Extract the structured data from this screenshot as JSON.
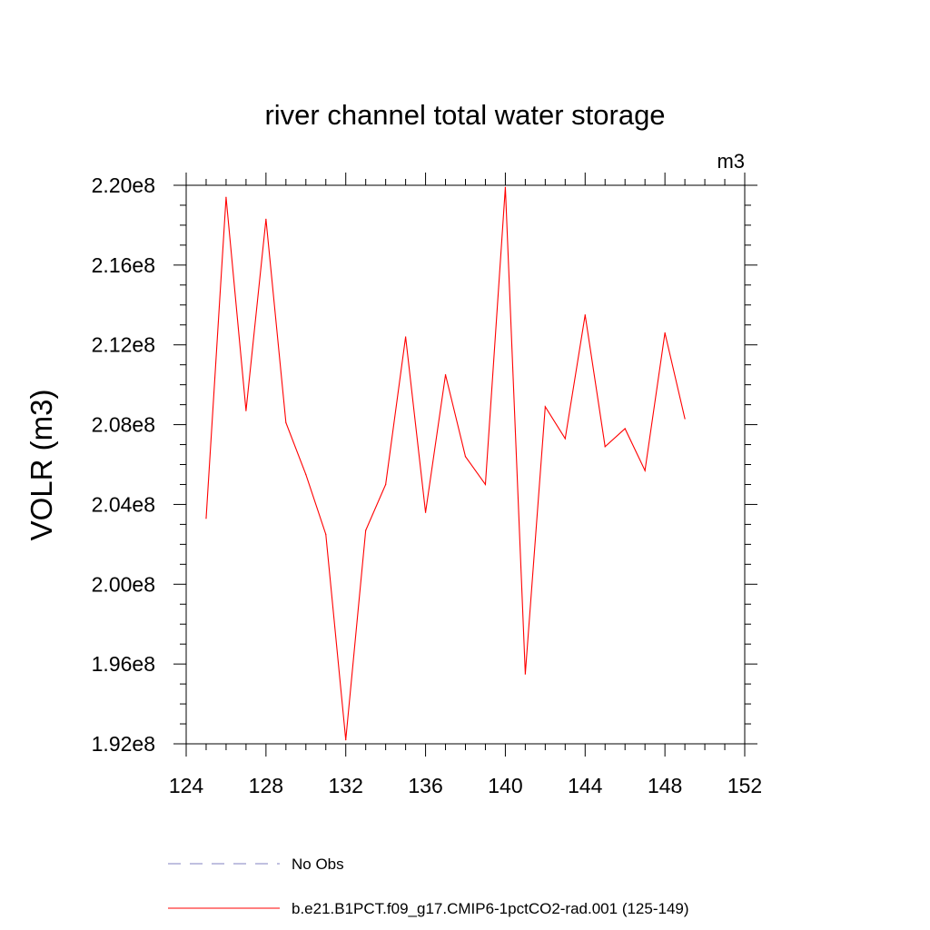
{
  "chart_data": {
    "type": "line",
    "title": "river channel total water storage",
    "units_label": "m3",
    "ylabel": "VOLR  (m3)",
    "xlabel": "",
    "xlim": [
      124,
      152
    ],
    "ylim": [
      192000000.0,
      220000000.0
    ],
    "xticks": [
      124,
      128,
      132,
      136,
      140,
      144,
      148,
      152
    ],
    "xtick_labels": [
      "124",
      "128",
      "132",
      "136",
      "140",
      "144",
      "148",
      "152"
    ],
    "yticks": [
      192000000.0,
      196000000.0,
      200000000.0,
      204000000.0,
      208000000.0,
      212000000.0,
      216000000.0,
      220000000.0
    ],
    "ytick_labels": [
      "1.92e8",
      "1.96e8",
      "2.00e8",
      "2.04e8",
      "2.08e8",
      "2.12e8",
      "2.16e8",
      "2.20e8"
    ],
    "grid": false,
    "legend_position": "bottom",
    "series": [
      {
        "name": "No Obs",
        "color": "#8080c0",
        "dash": "dashed",
        "x": [],
        "y": []
      },
      {
        "name": "b.e21.B1PCT.f09_g17.CMIP6-1pctCO2-rad.001 (125-149)",
        "color": "#ff0000",
        "dash": "solid",
        "x": [
          125,
          126,
          127,
          128,
          129,
          130,
          131,
          132,
          133,
          134,
          135,
          136,
          137,
          138,
          139,
          140,
          141,
          142,
          143,
          144,
          145,
          146,
          147,
          148,
          149
        ],
        "y": [
          203300000.0,
          219400000.0,
          208700000.0,
          218300000.0,
          208100000.0,
          205500000.0,
          202500000.0,
          192200000.0,
          202700000.0,
          205000000.0,
          212400000.0,
          203600000.0,
          210500000.0,
          206400000.0,
          205000000.0,
          219900000.0,
          195500000.0,
          208900000.0,
          207300000.0,
          213500000.0,
          206900000.0,
          207800000.0,
          205700000.0,
          212600000.0,
          208300000.0
        ]
      }
    ]
  }
}
